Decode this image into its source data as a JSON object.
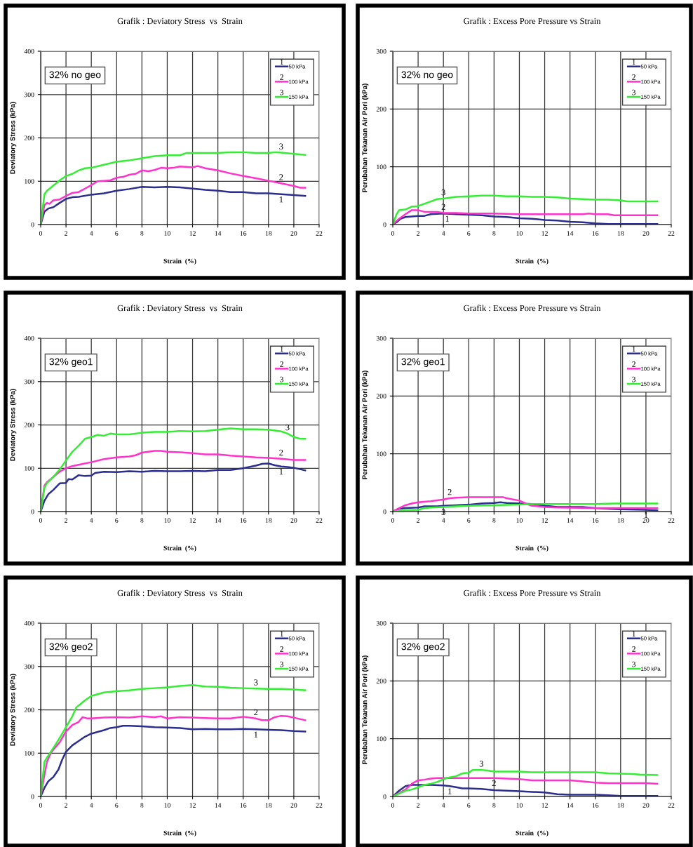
{
  "chart_data": [
    {
      "type": "line",
      "title": "Grafik : Deviatory Stress  vs  Strain",
      "xlabel": "Strain  (%)",
      "ylabel": "Deviatory Stress (kPa)",
      "xlim": [
        0,
        22
      ],
      "xticks": [
        0,
        2,
        4,
        6,
        8,
        10,
        12,
        14,
        16,
        18,
        20,
        22
      ],
      "ylim": [
        0,
        400
      ],
      "yticks": [
        0,
        100,
        200,
        300,
        400
      ],
      "grid": true,
      "legend": "top right",
      "marker": "none",
      "line_style": "solid",
      "annotations": [
        "32% no geo",
        {
          "text": "1",
          "x": 19,
          "y": 70
        },
        {
          "text": "2",
          "x": 19,
          "y": 95
        },
        {
          "text": "3",
          "x": 19,
          "y": 166
        }
      ],
      "series": [
        {
          "name": "50 kPa",
          "color": "#2b2e8f",
          "x": [
            0,
            0.3,
            0.6,
            1,
            1.5,
            2,
            2.5,
            3,
            4,
            5,
            6,
            7,
            8,
            9,
            10,
            11,
            12,
            13,
            14,
            15,
            16,
            17,
            18,
            19,
            20,
            20.9
          ],
          "values": [
            0,
            30,
            37,
            40,
            50,
            59,
            63,
            64,
            69,
            72,
            78,
            82,
            87,
            86,
            87,
            86,
            83,
            80,
            78,
            75,
            75,
            72,
            72,
            70,
            68,
            66
          ]
        },
        {
          "name": "100 kPa",
          "color": "#ff33cc",
          "x": [
            0,
            0.3,
            0.5,
            0.7,
            1,
            1.5,
            2,
            2.5,
            3,
            3.5,
            4,
            4.5,
            5,
            5.5,
            6,
            6.5,
            7,
            7.5,
            8,
            8.5,
            9,
            9.5,
            10,
            10.5,
            11,
            12,
            12.4,
            13,
            14,
            15,
            16,
            17,
            18,
            19,
            20,
            20.5,
            20.9
          ],
          "values": [
            0,
            45,
            50,
            48,
            56,
            58,
            66,
            73,
            75,
            83,
            91,
            100,
            101,
            102,
            108,
            110,
            115,
            117,
            125,
            123,
            126,
            131,
            130,
            131,
            134,
            132,
            135,
            130,
            125,
            118,
            112,
            107,
            101,
            95,
            89,
            85,
            85
          ]
        },
        {
          "name": "150 kPa",
          "color": "#33ee33",
          "x": [
            0,
            0.3,
            0.5,
            1,
            1.5,
            2,
            2.5,
            3,
            3.5,
            4,
            5,
            6,
            7,
            8,
            9,
            10,
            11,
            11.5,
            12,
            14,
            15,
            16,
            17,
            18,
            18.5,
            19,
            20,
            20.9
          ],
          "values": [
            0,
            70,
            78,
            90,
            102,
            112,
            117,
            125,
            130,
            131,
            138,
            145,
            148,
            153,
            158,
            160,
            160,
            165,
            165,
            165,
            167,
            167,
            165,
            165,
            167,
            166,
            163,
            161
          ]
        }
      ]
    },
    {
      "type": "line",
      "title": "Grafik : Excess Pore Pressure vs Strain",
      "xlabel": "Strain  (%)",
      "ylabel": "Perubahan Tekanan Air Pori (kPa)",
      "xlim": [
        0,
        22
      ],
      "xticks": [
        0,
        2,
        4,
        6,
        8,
        10,
        12,
        14,
        16,
        18,
        20,
        22
      ],
      "ylim": [
        0,
        300
      ],
      "yticks": [
        0,
        100,
        200,
        300
      ],
      "grid": true,
      "legend": "top right",
      "marker": "none",
      "line_style": "solid",
      "annotations": [
        "32% no geo",
        {
          "text": "1",
          "x": 4.3,
          "y": 19
        },
        {
          "text": "2",
          "x": 4,
          "y": 20
        },
        {
          "text": "3",
          "x": 4,
          "y": 45
        }
      ],
      "series": [
        {
          "name": "50 kPa",
          "color": "#2b2e8f",
          "x": [
            0,
            0.3,
            0.6,
            1,
            1.5,
            2,
            2.5,
            3,
            4,
            5,
            6,
            7,
            8,
            9,
            10,
            11,
            12,
            13,
            14,
            15,
            16,
            17,
            18,
            20.9
          ],
          "values": [
            0,
            4,
            10,
            13,
            14,
            15,
            15,
            18,
            19,
            18,
            17,
            16,
            14,
            13,
            11,
            10,
            8,
            7,
            5,
            4,
            2,
            1,
            1,
            1
          ]
        },
        {
          "name": "100 kPa",
          "color": "#ff33cc",
          "x": [
            0,
            0.5,
            1,
            1.5,
            2,
            2.5,
            3.5,
            4,
            5,
            6,
            8,
            10,
            15,
            15.5,
            16,
            17,
            17.5,
            20.9
          ],
          "values": [
            0,
            10,
            18,
            25,
            25,
            22,
            22,
            20,
            20,
            19,
            19,
            18,
            18,
            19,
            18,
            18,
            16,
            16
          ]
        },
        {
          "name": "150 kPa",
          "color": "#33ee33",
          "x": [
            0,
            0.3,
            0.5,
            1,
            1.5,
            2,
            2.5,
            3,
            3.5,
            4,
            5,
            6,
            7,
            8,
            9,
            10,
            11,
            12,
            13,
            14,
            15,
            16,
            17,
            18,
            18.5,
            20.9
          ],
          "values": [
            0,
            18,
            25,
            26,
            31,
            32,
            36,
            40,
            44,
            45,
            48,
            49,
            50,
            50,
            49,
            49,
            48,
            48,
            47,
            45,
            44,
            43,
            43,
            42,
            40,
            40
          ]
        }
      ]
    },
    {
      "type": "line",
      "title": "Grafik : Deviatory Stress  vs  Strain",
      "xlabel": "Strain  (%)",
      "ylabel": "Deviatory Stress (kPa)",
      "xlim": [
        0,
        22
      ],
      "xticks": [
        0,
        2,
        4,
        6,
        8,
        10,
        12,
        14,
        16,
        18,
        20,
        22
      ],
      "ylim": [
        0,
        400
      ],
      "yticks": [
        0,
        100,
        200,
        300,
        400
      ],
      "grid": true,
      "legend": "top right",
      "marker": "none",
      "line_style": "solid",
      "annotations": [
        "32% geo1",
        {
          "text": "1",
          "x": 19,
          "y": 104
        },
        {
          "text": "2",
          "x": 19,
          "y": 122
        },
        {
          "text": "3",
          "x": 19.5,
          "y": 180
        }
      ],
      "series": [
        {
          "name": "50 kPa",
          "color": "#2b2e8f",
          "x": [
            0,
            0.3,
            0.6,
            1,
            1.5,
            2,
            2.2,
            2.5,
            3,
            3.5,
            4,
            4.3,
            5,
            6,
            7,
            8,
            9,
            10,
            11,
            12,
            13,
            14,
            15,
            16,
            17,
            17.5,
            18,
            18.5,
            19,
            19.5,
            20,
            20.9
          ],
          "values": [
            0,
            25,
            40,
            50,
            65,
            66,
            75,
            74,
            84,
            82,
            83,
            89,
            92,
            91,
            93,
            92,
            94,
            93,
            93,
            94,
            93,
            96,
            96,
            100,
            106,
            110,
            111,
            107,
            104,
            103,
            101,
            95
          ]
        },
        {
          "name": "100 kPa",
          "color": "#ff33cc",
          "x": [
            0,
            0.3,
            0.5,
            1,
            1.5,
            2,
            2.5,
            3,
            4,
            5,
            6,
            7,
            7.5,
            8,
            9,
            9.5,
            10,
            11,
            12,
            13,
            14,
            15,
            16,
            17,
            18,
            19,
            20,
            20.9
          ],
          "values": [
            0,
            60,
            68,
            80,
            92,
            100,
            105,
            108,
            114,
            121,
            125,
            127,
            130,
            136,
            140,
            140,
            138,
            137,
            135,
            132,
            132,
            129,
            127,
            125,
            124,
            122,
            119,
            119
          ]
        },
        {
          "name": "150 kPa",
          "color": "#33ee33",
          "x": [
            0,
            0.3,
            0.5,
            1,
            1.5,
            2,
            2.5,
            3,
            3.5,
            4,
            4.5,
            5,
            5.5,
            6,
            7,
            8,
            9,
            10,
            11,
            12,
            13,
            14,
            15,
            16,
            17,
            18,
            19,
            19.5,
            20,
            20.5,
            20.9
          ],
          "values": [
            0,
            55,
            66,
            80,
            97,
            118,
            138,
            152,
            168,
            172,
            177,
            175,
            180,
            178,
            178,
            182,
            184,
            184,
            186,
            185,
            186,
            189,
            192,
            190,
            190,
            189,
            185,
            180,
            172,
            168,
            168
          ]
        }
      ]
    },
    {
      "type": "line",
      "title": "Grafik : Excess Pore Pressure vs Strain",
      "xlabel": "Strain  (%)",
      "ylabel": "Perubahan Tekanan Air Pori (kPa)",
      "xlim": [
        0,
        22
      ],
      "xticks": [
        0,
        2,
        4,
        6,
        8,
        10,
        12,
        14,
        16,
        18,
        20,
        22
      ],
      "ylim": [
        0,
        300
      ],
      "yticks": [
        0,
        100,
        200,
        300
      ],
      "grid": true,
      "legend": "top right",
      "marker": "none",
      "line_style": "solid",
      "annotations": [
        "32% geo1",
        {
          "text": "1",
          "x": 20,
          "y": 3
        },
        {
          "text": "2",
          "x": 4.5,
          "y": 23
        },
        {
          "text": "3",
          "x": 4,
          "y": 8
        }
      ],
      "series": [
        {
          "name": "50 kPa",
          "color": "#2b2e8f",
          "x": [
            0,
            0.5,
            1,
            2,
            2.5,
            3.5,
            4,
            5,
            6,
            7,
            8,
            8.5,
            9,
            10,
            11,
            12,
            12.5,
            13,
            15,
            16,
            17,
            18,
            20,
            20.9
          ],
          "values": [
            0,
            5,
            6,
            7,
            9,
            9,
            10,
            11,
            12,
            14,
            15,
            16,
            15,
            14,
            13,
            10,
            9,
            8,
            8,
            6,
            5,
            4,
            3,
            2
          ]
        },
        {
          "name": "100 kPa",
          "color": "#ff33cc",
          "x": [
            0,
            0.5,
            1,
            1.5,
            2,
            3,
            4,
            4.5,
            5,
            6,
            8,
            8.7,
            9,
            10,
            10.5,
            11,
            12,
            13,
            16,
            18,
            20.9
          ],
          "values": [
            0,
            6,
            11,
            14,
            16,
            18,
            21,
            23,
            24,
            25,
            25,
            25,
            23,
            19,
            14,
            10,
            8,
            7,
            6,
            6,
            6
          ]
        },
        {
          "name": "150 kPa",
          "color": "#33ee33",
          "x": [
            0,
            1,
            2,
            2.5,
            3,
            4,
            5,
            6,
            8,
            10,
            11,
            12,
            16,
            17.5,
            20.9
          ],
          "values": [
            0,
            2,
            3,
            6,
            7,
            8,
            9,
            10,
            11,
            12,
            13,
            13,
            13,
            14,
            14
          ]
        }
      ]
    },
    {
      "type": "line",
      "title": "Grafik : Deviatory Stress  vs  Strain",
      "xlabel": "Strain  (%)",
      "ylabel": "Deviatory Stress (kPa)",
      "xlim": [
        0,
        22
      ],
      "xticks": [
        0,
        2,
        4,
        6,
        8,
        10,
        12,
        14,
        16,
        18,
        20,
        22
      ],
      "ylim": [
        0,
        400
      ],
      "yticks": [
        0,
        100,
        200,
        300,
        400
      ],
      "grid": true,
      "legend": "top right",
      "marker": "none",
      "line_style": "solid",
      "annotations": [
        "32% geo2",
        {
          "text": "1",
          "x": 17,
          "y": 155
        },
        {
          "text": "2",
          "x": 17,
          "y": 180
        },
        {
          "text": "3",
          "x": 17,
          "y": 249
        }
      ],
      "series": [
        {
          "name": "50 kPa",
          "color": "#2b2e8f",
          "x": [
            0,
            0.3,
            0.6,
            1,
            1.4,
            1.7,
            2,
            2.5,
            3,
            3.5,
            4,
            5,
            5.5,
            6,
            6.5,
            7,
            8,
            9,
            10,
            11,
            12,
            13,
            14,
            15,
            16,
            17,
            18,
            19,
            20,
            20.9
          ],
          "values": [
            0,
            20,
            35,
            45,
            62,
            85,
            103,
            118,
            128,
            138,
            145,
            153,
            158,
            160,
            163,
            163,
            162,
            160,
            159,
            158,
            155,
            156,
            155,
            155,
            156,
            155,
            154,
            153,
            151,
            150
          ]
        },
        {
          "name": "100 kPa",
          "color": "#ff33cc",
          "x": [
            0,
            0.3,
            0.5,
            0.8,
            1,
            1.5,
            2,
            2.5,
            3,
            3.3,
            3.7,
            4,
            5,
            6,
            7,
            8,
            9,
            9.5,
            10,
            11,
            12,
            13,
            14,
            15,
            16,
            17,
            17.5,
            18,
            18.5,
            19,
            19.5,
            20,
            20.9
          ],
          "values": [
            0,
            50,
            80,
            100,
            108,
            125,
            150,
            165,
            172,
            183,
            180,
            180,
            182,
            183,
            182,
            185,
            183,
            185,
            180,
            183,
            182,
            181,
            180,
            180,
            184,
            180,
            176,
            176,
            183,
            186,
            185,
            182,
            176
          ]
        },
        {
          "name": "150 kPa",
          "color": "#33ee33",
          "x": [
            0,
            0.3,
            0.5,
            1,
            1.5,
            2,
            2.5,
            2.8,
            3,
            3.5,
            4,
            5,
            6,
            7,
            8,
            9,
            10,
            11,
            12,
            13,
            14,
            15,
            16,
            17,
            18,
            19,
            20,
            20.9
          ],
          "values": [
            0,
            80,
            90,
            112,
            135,
            160,
            185,
            205,
            210,
            222,
            232,
            240,
            243,
            245,
            248,
            250,
            252,
            255,
            257,
            254,
            253,
            251,
            250,
            249,
            248,
            248,
            247,
            245
          ]
        }
      ]
    },
    {
      "type": "line",
      "title": "Grafik : Excess Pore Pressure vs Strain",
      "xlabel": "Strain  (%)",
      "ylabel": "Perubahan Tekanan Air Pori (kPa)",
      "xlim": [
        0,
        22
      ],
      "xticks": [
        0,
        2,
        4,
        6,
        8,
        10,
        12,
        14,
        16,
        18,
        20,
        22
      ],
      "ylim": [
        0,
        300
      ],
      "yticks": [
        0,
        100,
        200,
        300
      ],
      "grid": true,
      "legend": "top right",
      "marker": "none",
      "line_style": "solid",
      "annotations": [
        "32% geo2",
        {
          "text": "1",
          "x": 4.5,
          "y": 18
        },
        {
          "text": "2",
          "x": 8,
          "y": 32
        },
        {
          "text": "3",
          "x": 7,
          "y": 46
        }
      ],
      "series": [
        {
          "name": "50 kPa",
          "color": "#2b2e8f",
          "x": [
            0,
            0.5,
            1,
            1.5,
            2,
            3,
            4,
            4.5,
            5,
            5.5,
            6,
            7,
            8,
            9,
            10,
            11,
            12,
            13,
            14,
            16,
            17,
            18,
            20.9
          ],
          "values": [
            0,
            10,
            18,
            20,
            20,
            20,
            19,
            18,
            16,
            14,
            14,
            13,
            11,
            10,
            9,
            8,
            7,
            4,
            3,
            3,
            2,
            1,
            1
          ]
        },
        {
          "name": "100 kPa",
          "color": "#ff33cc",
          "x": [
            0,
            0.5,
            1,
            1.5,
            2,
            2.5,
            3,
            3.5,
            4,
            6,
            8,
            9,
            10,
            11,
            14,
            15,
            16,
            17,
            20,
            20.9
          ],
          "values": [
            0,
            6,
            12,
            22,
            28,
            29,
            31,
            32,
            32,
            32,
            32,
            31,
            30,
            28,
            28,
            26,
            24,
            23,
            23,
            22
          ]
        },
        {
          "name": "150 kPa",
          "color": "#33ee33",
          "x": [
            0,
            0.5,
            1,
            1.5,
            2,
            2.5,
            3,
            3.5,
            4,
            4.5,
            5,
            5.5,
            6,
            6.3,
            7,
            7.5,
            8,
            10,
            11,
            16,
            17,
            19,
            19.5,
            20.9
          ],
          "values": [
            0,
            5,
            10,
            12,
            16,
            20,
            22,
            25,
            30,
            33,
            35,
            40,
            41,
            46,
            46,
            45,
            43,
            43,
            42,
            42,
            40,
            39,
            38,
            37
          ]
        }
      ]
    }
  ]
}
